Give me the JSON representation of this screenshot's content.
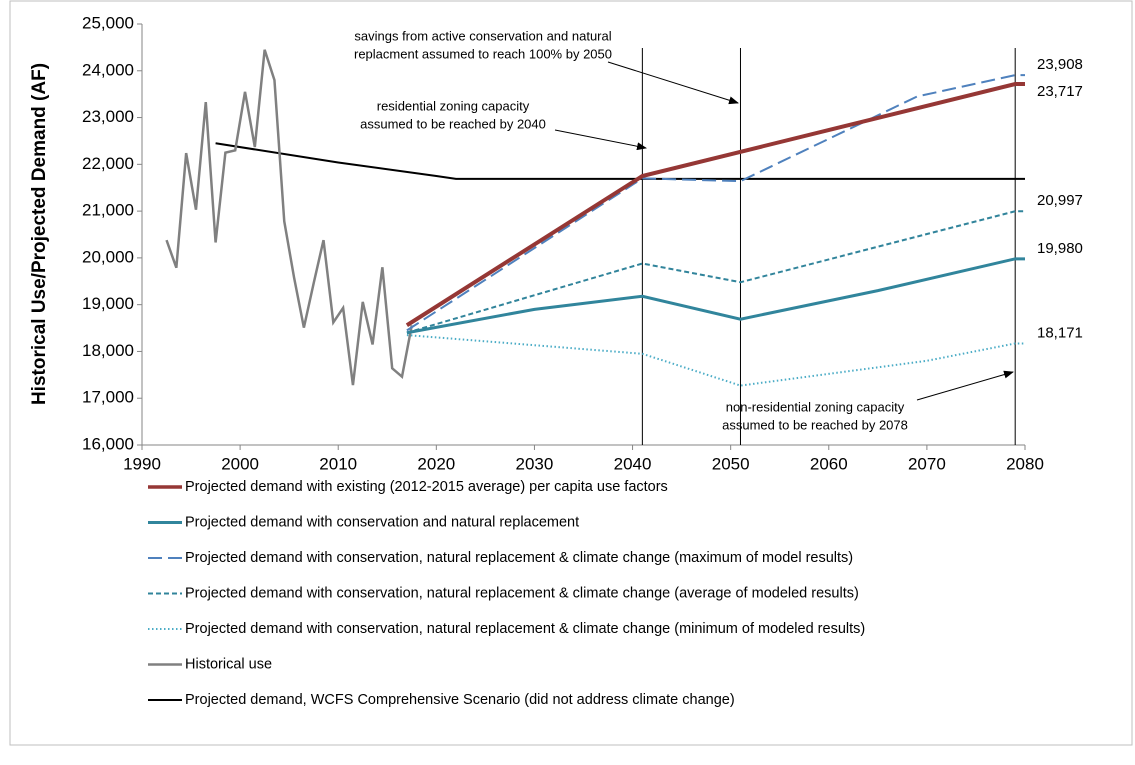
{
  "chart_data": {
    "type": "line",
    "y_label": "Historical Use/Projected Demand (AF)",
    "xlim": [
      1990,
      2080
    ],
    "xticks": [
      1990,
      2000,
      2010,
      2020,
      2030,
      2040,
      2050,
      2060,
      2070,
      2080
    ],
    "ylim": [
      16000,
      25000
    ],
    "yticks": [
      {
        "value": 16000,
        "label": "16,000"
      },
      {
        "value": 17000,
        "label": "17,000"
      },
      {
        "value": 18000,
        "label": "18,000"
      },
      {
        "value": 19000,
        "label": "19,000"
      },
      {
        "value": 20000,
        "label": "20,000"
      },
      {
        "value": 21000,
        "label": "21,000"
      },
      {
        "value": 22000,
        "label": "22,000"
      },
      {
        "value": 23000,
        "label": "23,000"
      },
      {
        "value": 24000,
        "label": "24,000"
      },
      {
        "value": 25000,
        "label": "25,000"
      }
    ],
    "vlines": [
      2041,
      2051,
      2079
    ],
    "annotations": [
      {
        "lines": [
          "savings from active conservation and natural",
          "replacment assumed to reach 100% by 2050"
        ]
      },
      {
        "lines": [
          "residential zoning capacity",
          "assumed to be reached by 2040"
        ]
      },
      {
        "lines": [
          "non-residential zoning capacity",
          "assumed to be reached by 2078"
        ]
      }
    ],
    "series": [
      {
        "name": "Projected demand with existing (2012-2015 average) per capita use factors",
        "color": "#953735",
        "dash": "solid",
        "width": 4,
        "x": [
          2017,
          2041,
          2079,
          2080
        ],
        "values": [
          18560,
          21750,
          23717,
          23717
        ],
        "value_labels": [
          null,
          null,
          null,
          "23,717"
        ]
      },
      {
        "name": "Projected demand with conservation and natural replacement",
        "color": "#31859c",
        "dash": "solid",
        "width": 3,
        "x": [
          2017,
          2030,
          2041,
          2051,
          2065,
          2079,
          2080
        ],
        "values": [
          18400,
          18900,
          19180,
          18690,
          19300,
          19980,
          19980
        ],
        "value_labels": [
          null,
          null,
          null,
          null,
          null,
          null,
          "19,980"
        ]
      },
      {
        "name": "Projected demand with conservation, natural replacement & climate change (maximum of model results)",
        "color": "#4f81bd",
        "dash": "longdash",
        "width": 2,
        "x": [
          2017,
          2041,
          2051,
          2069,
          2079,
          2080
        ],
        "values": [
          18450,
          21700,
          21640,
          23450,
          23908,
          23908
        ],
        "value_labels": [
          null,
          null,
          null,
          null,
          null,
          "23,908"
        ]
      },
      {
        "name": "Projected demand with conservation, natural replacement & climate change (average of modeled results)",
        "color": "#31849b",
        "dash": "dash",
        "width": 2,
        "x": [
          2017,
          2041,
          2051,
          2079,
          2080
        ],
        "values": [
          18400,
          19880,
          19480,
          20997,
          20997
        ],
        "value_labels": [
          null,
          null,
          null,
          null,
          "20,997"
        ]
      },
      {
        "name": "Projected demand with conservation, natural replacement & climate change (minimum of modeled results)",
        "color": "#4bacc6",
        "dash": "dot",
        "width": 2,
        "x": [
          2017,
          2041,
          2051,
          2070,
          2079,
          2080
        ],
        "values": [
          18350,
          17950,
          17270,
          17800,
          18171,
          18171
        ],
        "value_labels": [
          null,
          null,
          null,
          null,
          null,
          "18,171"
        ]
      },
      {
        "name": "Historical use",
        "color": "#808080",
        "dash": "solid",
        "width": 2.5,
        "x": [
          1992.5,
          1993.5,
          1994.5,
          1995.5,
          1996.5,
          1997.5,
          1998.5,
          1999.5,
          2000.5,
          2001.5,
          2002.5,
          2003.5,
          2004.5,
          2005.5,
          2006.5,
          2007.5,
          2008.5,
          2009.5,
          2010.5,
          2011.5,
          2012.5,
          2013.5,
          2014.5,
          2015.5,
          2016.5,
          2017.5
        ],
        "values": [
          20380,
          19790,
          22240,
          21030,
          23330,
          20330,
          22250,
          22300,
          23550,
          22370,
          24450,
          23800,
          20780,
          19580,
          18510,
          19460,
          20380,
          18620,
          18930,
          17280,
          19060,
          18150,
          19800,
          17640,
          17460,
          18560
        ]
      },
      {
        "name": "Projected demand, WCFS Comprehensive Scenario (did not address climate change)",
        "color": "#000000",
        "dash": "solid",
        "width": 2,
        "x": [
          1997.5,
          2010,
          2020,
          2022,
          2080
        ],
        "values": [
          22450,
          22040,
          21750,
          21690,
          21690
        ]
      }
    ]
  }
}
